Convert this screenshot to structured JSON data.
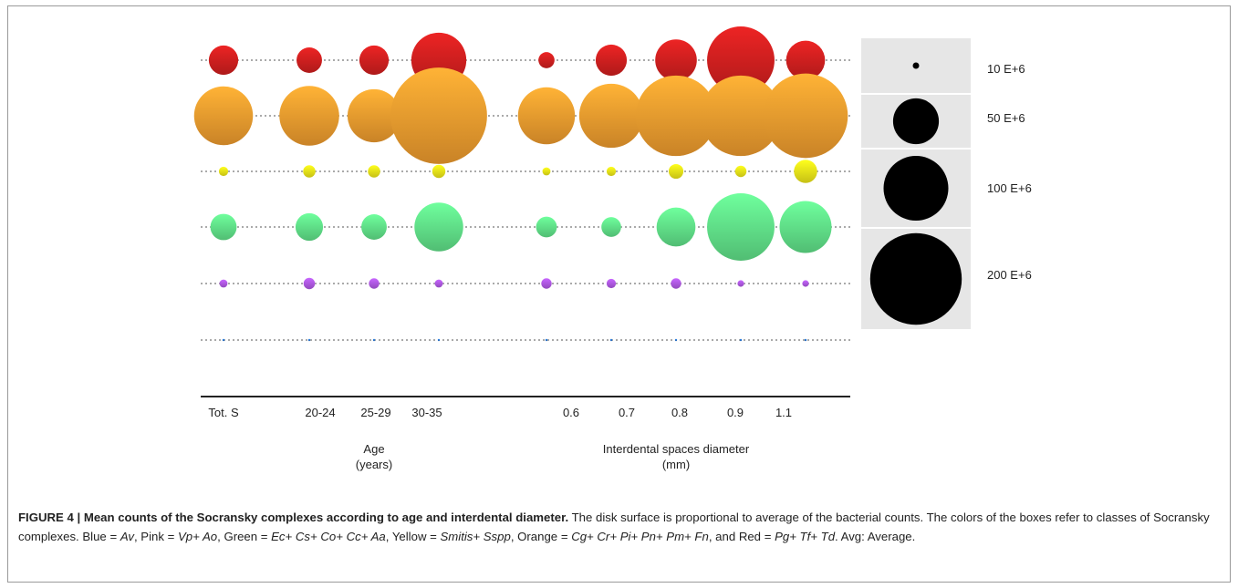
{
  "chart_data": {
    "type": "bubble",
    "x_groups": [
      {
        "label": "Age",
        "sublabel": "(years)",
        "categories": [
          "Tot. S",
          "20-24",
          "25-29",
          "30-35"
        ]
      },
      {
        "label": "Interdental spaces diameter",
        "sublabel": "(mm)",
        "categories": [
          "0.6",
          "0.7",
          "0.8",
          "0.9",
          "1.1"
        ]
      }
    ],
    "categories": [
      "Tot. S",
      "20-24",
      "25-29",
      "30-35",
      "0.6",
      "0.7",
      "0.8",
      "0.9",
      "1.1"
    ],
    "series": [
      {
        "name": "Red",
        "color": "#d42020",
        "values": [
          40,
          30,
          40,
          140,
          12,
          45,
          80,
          210,
          70
        ]
      },
      {
        "name": "Orange",
        "color": "#f5a030",
        "values": [
          160,
          165,
          130,
          430,
          150,
          190,
          300,
          300,
          330
        ]
      },
      {
        "name": "Yellow",
        "color": "#f2ea1a",
        "values": [
          4,
          7,
          7,
          8,
          3,
          4,
          10,
          6,
          25
        ]
      },
      {
        "name": "Green",
        "color": "#63e68c",
        "values": [
          32,
          35,
          30,
          110,
          20,
          18,
          70,
          210,
          125
        ]
      },
      {
        "name": "Pink",
        "color": "#b25ae8",
        "values": [
          3,
          6,
          5,
          3,
          5,
          4,
          5,
          2,
          2
        ]
      },
      {
        "name": "Blue",
        "color": "#2a78d4",
        "values": [
          0.2,
          0.2,
          0.2,
          0.2,
          0.2,
          0.2,
          0.2,
          0.2,
          0.2
        ]
      }
    ],
    "size_legend": [
      {
        "label": "10 E+6",
        "value": 10
      },
      {
        "label": "50 E+6",
        "value": 50
      },
      {
        "label": "100 E+6",
        "value": 100
      },
      {
        "label": "200 E+6",
        "value": 200
      }
    ],
    "grid": true,
    "legend_position": "right"
  },
  "caption": {
    "title": "FIGURE 4 | Mean counts of the Socransky complexes according to age and interdental diameter.",
    "sentence1": "The disk surface is proportional to average of the bacterial counts.",
    "sentence2": "The colors of the boxes refer to classes of Socransky complexes.",
    "blue_label": "Blue",
    "blue_taxa": "Av",
    "pink_label": "Pink",
    "pink_taxa": "Vp+ Ao",
    "green_label": "Green",
    "green_taxa": "Ec+ Cs+ Co+ Cc+ Aa",
    "yellow_label": "Yellow",
    "yellow_taxa": "Smitis+ Sspp",
    "orange_label": "Orange",
    "orange_taxa": "Cg+ Cr+ Pi+ Pn+ Pm+ Fn",
    "red_label": "Red",
    "red_taxa": "Pg+ Tf+ Td",
    "avg_note": "Avg: Average."
  }
}
